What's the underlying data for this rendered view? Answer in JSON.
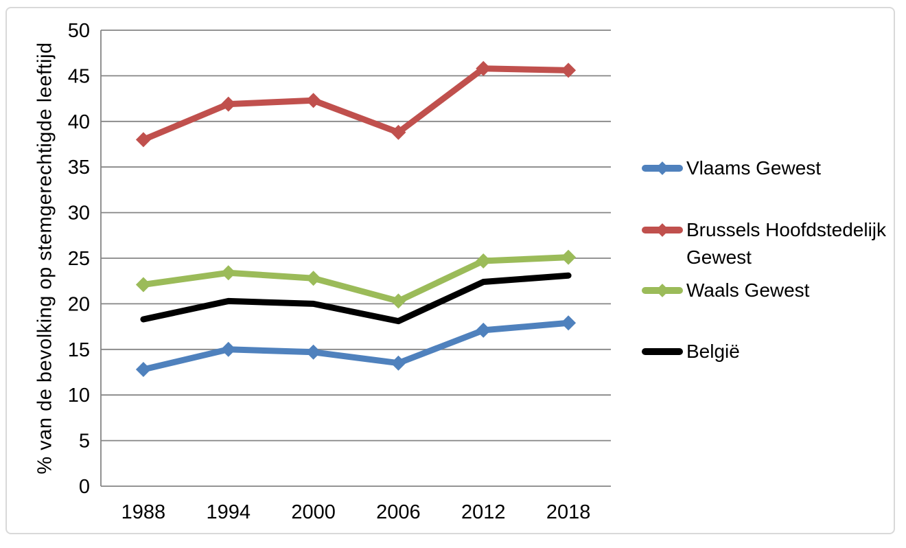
{
  "figure": {
    "background": "#ffffff",
    "frame_border_color": "#d9d9d9"
  },
  "chart_data": {
    "type": "line",
    "title": "",
    "xlabel": "",
    "ylabel": "% van de bevolking op stemgerechtigde leeftijd",
    "x": [
      "1988",
      "1994",
      "2000",
      "2006",
      "2012",
      "2018"
    ],
    "ylim": [
      0,
      50
    ],
    "yticks": [
      0,
      5,
      10,
      15,
      20,
      25,
      30,
      35,
      40,
      45,
      50
    ],
    "grid": true,
    "grid_color": "#858585",
    "axis_text_color": "#000000",
    "legend_position": "right",
    "series": [
      {
        "name": "Vlaams Gewest",
        "color": "#4F81BD",
        "marker": "diamond",
        "values": [
          12.8,
          15.0,
          14.7,
          13.5,
          17.1,
          17.9
        ]
      },
      {
        "name": "Brussels Hoofdstedelijk Gewest",
        "color": "#C0504D",
        "marker": "diamond",
        "values": [
          38.0,
          41.9,
          42.3,
          38.8,
          45.8,
          45.6
        ]
      },
      {
        "name": "Waals Gewest",
        "color": "#9BBB59",
        "marker": "diamond",
        "values": [
          22.1,
          23.4,
          22.8,
          20.3,
          24.7,
          25.1
        ]
      },
      {
        "name": "België",
        "color": "#000000",
        "marker": "none",
        "values": [
          18.3,
          20.3,
          20.0,
          18.1,
          22.4,
          23.1
        ]
      }
    ]
  }
}
